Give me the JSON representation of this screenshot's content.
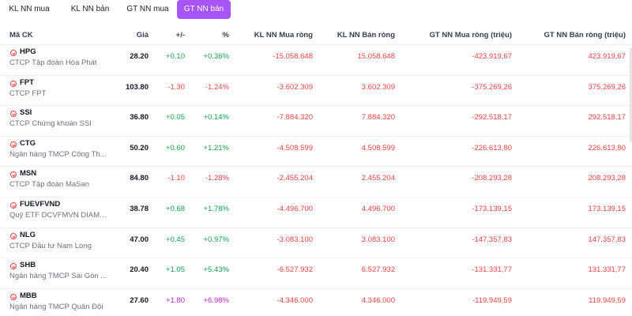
{
  "tabs": [
    {
      "label": "KL NN mua"
    },
    {
      "label": "KL NN bán"
    },
    {
      "label": "GT NN mua"
    },
    {
      "label": "GT NN bán",
      "active": true
    }
  ],
  "table": {
    "headers": {
      "symbol": "Mã CK",
      "price": "Giá",
      "change": "+/-",
      "percent": "%",
      "kl_mua": "KL NN Mua ròng",
      "kl_ban": "KL NN Bán ròng",
      "gt_mua": "GT NN Mua ròng (triệu)",
      "gt_ban": "GT NN Bán ròng (triệu)"
    },
    "rows": [
      {
        "symbol": "HPG",
        "name": "CTCP Tập đoàn Hòa Phát",
        "price": "28.20",
        "change": "+0.10",
        "percent": "+0.36%",
        "trend": "up",
        "kl_mua": "-15.058.648",
        "kl_ban": "15.058.648",
        "gt_mua": "-423.919,67",
        "gt_ban": "423.919,67"
      },
      {
        "symbol": "FPT",
        "name": "CTCP FPT",
        "price": "103.80",
        "change": "-1.30",
        "percent": "-1.24%",
        "trend": "down",
        "kl_mua": "-3.602.309",
        "kl_ban": "3.602.309",
        "gt_mua": "-375.269,26",
        "gt_ban": "375.269,26"
      },
      {
        "symbol": "SSI",
        "name": "CTCP Chứng khoán SSI",
        "price": "36.80",
        "change": "+0.05",
        "percent": "+0.14%",
        "trend": "up",
        "kl_mua": "-7.884.320",
        "kl_ban": "7.884.320",
        "gt_mua": "-292.518,17",
        "gt_ban": "292.518,17"
      },
      {
        "symbol": "CTG",
        "name": "Ngân hàng TMCP Công Th...",
        "price": "50.20",
        "change": "+0.60",
        "percent": "+1.21%",
        "trend": "up",
        "kl_mua": "-4.508.599",
        "kl_ban": "4.508.599",
        "gt_mua": "-226.613,80",
        "gt_ban": "226.613,80"
      },
      {
        "symbol": "MSN",
        "name": "CTCP Tập đoàn MaSan",
        "price": "84.80",
        "change": "-1.10",
        "percent": "-1.28%",
        "trend": "down",
        "kl_mua": "-2.455.204",
        "kl_ban": "2.455.204",
        "gt_mua": "-208.293,28",
        "gt_ban": "208.293,28"
      },
      {
        "symbol": "FUEVFVND",
        "name": "Quỹ ETF DCVFMVN DIAMO...",
        "price": "38.78",
        "change": "+0.68",
        "percent": "+1.78%",
        "trend": "up",
        "kl_mua": "-4.496.700",
        "kl_ban": "4.496.700",
        "gt_mua": "-173.139,15",
        "gt_ban": "173.139,15"
      },
      {
        "symbol": "NLG",
        "name": "CTCP Đầu tư Nam Long",
        "price": "47.00",
        "change": "+0.45",
        "percent": "+0.97%",
        "trend": "up",
        "kl_mua": "-3.083.100",
        "kl_ban": "3.083.100",
        "gt_mua": "-147.357,83",
        "gt_ban": "147.357,83"
      },
      {
        "symbol": "SHB",
        "name": "Ngân hàng TMCP Sài Gòn ...",
        "price": "20.40",
        "change": "+1.05",
        "percent": "+5.43%",
        "trend": "up",
        "kl_mua": "-6.527.932",
        "kl_ban": "6.527.932",
        "gt_mua": "-131.331,77",
        "gt_ban": "131.331,77"
      },
      {
        "symbol": "MBB",
        "name": "Ngân hàng TMCP Quân Đội",
        "price": "27.60",
        "change": "+1.80",
        "percent": "+6.98%",
        "trend": "ceil",
        "kl_mua": "-4.346.000",
        "kl_ban": "4.346.000",
        "gt_mua": "-119.949,59",
        "gt_ban": "119.949,59"
      }
    ]
  },
  "colors": {
    "accent": "#a855f7",
    "up": "#16a34a",
    "down": "#ef4444",
    "ceiling": "#c026d3"
  },
  "icons": {
    "row_icon": "stock-arrow-circle-icon"
  }
}
